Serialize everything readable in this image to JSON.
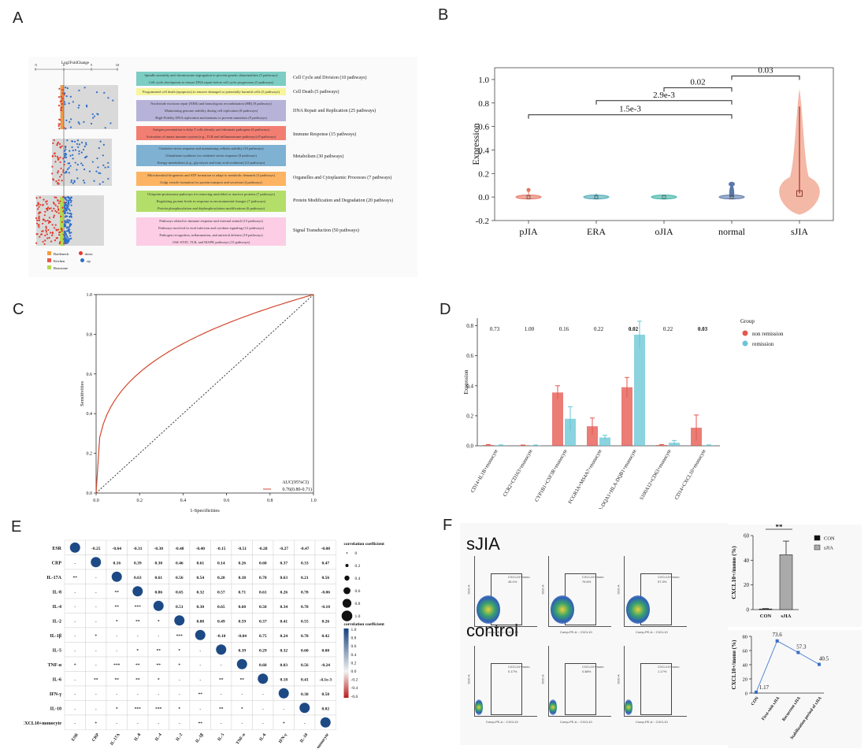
{
  "panel_labels": {
    "a": "A",
    "b": "B",
    "c": "C",
    "d": "D",
    "e": "E",
    "f": "F"
  },
  "panelA": {
    "axis_title": "Log2FoldChange",
    "ticks": [
      "-5",
      "0",
      "5",
      "10"
    ],
    "pathways": [
      {
        "text": "Spindle assembly and chromosome segregation to prevent genetic abnormalities (5 pathways)",
        "color": "#7ccdc4"
      },
      {
        "text": "Cell cycle checkpoints to ensure DNA repair before cell cycle progression (5 pathways)",
        "color": "#7ccdc4"
      },
      {
        "text": "Programmed cell death (apoptosis) to remove damaged or potentially harmful cells (5 pathways)",
        "color": "#f7f59a"
      },
      {
        "text": "Nucleotide excision repair (NER) and homologous recombination (HR) (8 pathways)",
        "color": "#b7b2d8"
      },
      {
        "text": "Maintaining genome stability during cell replication (8 pathways)",
        "color": "#b7b2d8"
      },
      {
        "text": "High-Fidelity DNA replication mechanisms to prevent mutations (9 pathways)",
        "color": "#b7b2d8"
      },
      {
        "text": "Antigen presentation to help T cells identify and eliminate pathogens (6 pathways)",
        "color": "#f27e72"
      },
      {
        "text": "Activation of innate immune system (e.g., TLR and inflammasome pathways) (9 pathways)",
        "color": "#f27e72"
      },
      {
        "text": "Oxidative stress response and maintaining cellular stability (10 pathways)",
        "color": "#7fb1d3"
      },
      {
        "text": "Glutathione synthesis for oxidative stress response (8 pathways)",
        "color": "#7fb1d3"
      },
      {
        "text": "Energy metabolism (e.g., glycolysis and fatty acid oxidation) (12 pathways)",
        "color": "#7fb1d3"
      },
      {
        "text": "Mitochondrial biogenesis and ATP formation to adapt to metabolic demands (3 pathways)",
        "color": "#fdb462"
      },
      {
        "text": "Golgi vesicle formation for protein transport and secretion (4 pathways)",
        "color": "#fdb462"
      },
      {
        "text": "Ubiquitin-proteasome pathways for removing misfolded or inactive proteins (7 pathways)",
        "color": "#b3de69"
      },
      {
        "text": "Regulating protein levels in response to environmental changes (7 pathways)",
        "color": "#b3de69"
      },
      {
        "text": "Protein phosphorylation and dephosphorylation modifications (6 pathways)",
        "color": "#b3de69"
      },
      {
        "text": "Pathways related to immune response and external stimuli (15 pathways)",
        "color": "#fccde5"
      },
      {
        "text": "Pathways involved in viral infection and cytokine signaling (12 pathways)",
        "color": "#fccde5"
      },
      {
        "text": "Pathogen recognition, inflammation, and antiviral defense (10 pathways)",
        "color": "#fccde5"
      },
      {
        "text": "JAK-STAT, TLR, and MAPK pathways (13 pathways)",
        "color": "#fccde5"
      }
    ],
    "categories": [
      "Cell Cycle and Division (10 pathways)",
      "Cell Death (5 pathways)",
      "DNA Repair and Replication (25 pathways)",
      "Immune Response (15 pathways)",
      "Metabolism (30 pathways)",
      "Organelles and Cytoplasmic Processes (7 pathways)",
      "Protein Modification and Degradation (20 pathways)",
      "Signal Transduction (50 pathways)"
    ],
    "legend": [
      "Bottleneck",
      "Kitchen",
      "Reactome",
      "down",
      "up"
    ]
  },
  "chart_data": [
    {
      "id": "B",
      "type": "violin",
      "categories": [
        "pJIA",
        "ERA",
        "oJIA",
        "normal",
        "sJIA"
      ],
      "ylabel": "Expression",
      "ylim": [
        -0.2,
        1.1
      ],
      "yticks": [
        "-0.2",
        "0.0",
        "0.2",
        "0.4",
        "0.6",
        "0.8",
        "1.0"
      ],
      "medians": [
        0.0,
        0.0,
        0.0,
        0.0,
        0.03
      ],
      "colors": [
        "#e5735f",
        "#4aa8b8",
        "#3bb3a6",
        "#5a78a8",
        "#f0a08a"
      ],
      "comparisons": [
        {
          "from": "pJIA",
          "to": "normal",
          "label": "1.5e-3"
        },
        {
          "from": "ERA",
          "to": "normal",
          "label": "2.9e-3"
        },
        {
          "from": "oJIA",
          "to": "normal",
          "label": "0.02"
        },
        {
          "from": "normal",
          "to": "sJIA",
          "label": "0.03"
        }
      ]
    },
    {
      "id": "C",
      "type": "line",
      "xlabel": "1-Specificities",
      "ylabel": "Sensitivities",
      "xlim": [
        0,
        1
      ],
      "ylim": [
        0,
        1
      ],
      "xticks": [
        "0.0",
        "0.2",
        "0.4",
        "0.6",
        "0.8",
        "1.0"
      ],
      "yticks": [
        "0.0",
        "0.2",
        "0.4",
        "0.6",
        "0.8",
        "1.0"
      ],
      "legend_title": "AUC(95%CI)",
      "legend_entry": "0.76(0.80-0.71)",
      "auc": 0.76
    },
    {
      "id": "D",
      "type": "bar",
      "categories": [
        "CD14+IL1B+monocyte",
        "CCR2+CD163+monocyte",
        "CYP1B1+CSF3R+monocyte",
        "FCGR3A+MS4A7+monocyte",
        "HLA-DQA1+HLA-DQB1+monocyte",
        "S100A12+CD63+monocyte",
        "CD14+CXCL10+monocyte"
      ],
      "ylabel": "Expression",
      "ylim": [
        0,
        0.85
      ],
      "yticks": [
        "0.0",
        "0.2",
        "0.4",
        "0.6",
        "0.8"
      ],
      "pvalues": [
        "0.73",
        "1.00",
        "0.16",
        "0.22",
        "0.02",
        "0.22",
        "0.03"
      ],
      "legend_title": "Group",
      "series": [
        {
          "name": "non remission",
          "color": "#e5574f",
          "values": [
            0.005,
            0.003,
            0.355,
            0.13,
            0.39,
            0.005,
            0.12
          ],
          "errors": [
            0.003,
            0.002,
            0.045,
            0.055,
            0.065,
            0.003,
            0.085
          ]
        },
        {
          "name": "remission",
          "color": "#6ac6d6",
          "values": [
            0.004,
            0.003,
            0.18,
            0.055,
            0.74,
            0.02,
            0.004
          ],
          "errors": [
            0.002,
            0.002,
            0.08,
            0.015,
            0.09,
            0.015,
            0.002
          ]
        }
      ]
    },
    {
      "id": "F-bar",
      "type": "bar",
      "categories": [
        "CON",
        "sJIA"
      ],
      "values": [
        0.5,
        44.5
      ],
      "errors": [
        0.3,
        11
      ],
      "ylabel": "CXCL10+/mono (%)",
      "ylim": [
        0,
        60
      ],
      "yticks": [
        "0",
        "20",
        "40",
        "60"
      ],
      "significance": "**",
      "legend": [
        "CON",
        "sJIA"
      ]
    },
    {
      "id": "F-line",
      "type": "line",
      "categories": [
        "CON",
        "First-visit sJIA",
        "Recurrent sJIA",
        "Stabilization period of sJIA"
      ],
      "values": [
        1.17,
        73.6,
        57.3,
        40.5
      ],
      "labels": [
        "1.17",
        "73.6",
        "57.3",
        "40.5"
      ],
      "ylabel": "CXCL10+/mono (%)",
      "ylim": [
        0,
        80
      ],
      "yticks": [
        "0",
        "20",
        "40",
        "60",
        "80"
      ]
    }
  ],
  "panelE": {
    "labels": [
      "ESR",
      "CRP",
      "IL-17A",
      "IL-8",
      "IL-4",
      "IL-2",
      "IL-1β",
      "IL-5",
      "TNF-α",
      "IL-6",
      "IFN-γ",
      "IL-10",
      "CD14+CXCL10+monocyte"
    ],
    "xlabels": [
      "ESR",
      "CRP",
      "IL-17A",
      "IL-8",
      "IL-4",
      "IL-2",
      "IL-1β",
      "IL-5",
      "TNF-α",
      "IL-6",
      "IFN-γ",
      "IL-10",
      "CD14+CXCL10+monocyte"
    ],
    "upper": [
      [
        "-0.25",
        "-0.64",
        "-0.31",
        "-0.30",
        "-0.48",
        "-0.40",
        "-0.15",
        "-0.51",
        "-0.28",
        "-0.27",
        "-0.47",
        "-0.08"
      ],
      [
        "0.16",
        "0.39",
        "0.30",
        "0.46",
        "0.61",
        "0.14",
        "0.26",
        "0.60",
        "0.37",
        "0.33",
        "0.47"
      ],
      [
        "0.63",
        "0.61",
        "0.56",
        "0.54",
        "0.20",
        "0.38",
        "0.78",
        "0.63",
        "0.21",
        "0.56",
        "-0.13"
      ],
      [
        "0.86",
        "0.65",
        "0.32",
        "0.57",
        "0.71",
        "0.61",
        "0.26",
        "0.78",
        "-0.06"
      ],
      [
        "0.51",
        "0.30",
        "0.65",
        "0.60",
        "0.50",
        "0.34",
        "0.78",
        "-0.10"
      ],
      [
        "0.88",
        "0.49",
        "0.59",
        "0.37",
        "0.41",
        "0.55",
        "0.26"
      ],
      [
        "-0.10",
        "-0.04",
        "0.75",
        "0.24",
        "0.78",
        "0.42"
      ],
      [
        "0.39",
        "0.29",
        "0.32",
        "0.60",
        "0.08"
      ],
      [
        "0.68",
        "0.03",
        "0.56",
        "-0.24"
      ],
      [
        "0.18",
        "0.41",
        "-4.1e-3"
      ],
      [
        "0.38",
        "0.50"
      ],
      [
        "0.02"
      ]
    ],
    "lower": [
      [],
      [
        "-"
      ],
      [
        "**",
        "-"
      ],
      [
        "-",
        "-",
        "**"
      ],
      [
        "-",
        "-",
        "**",
        "***"
      ],
      [
        "-",
        "-",
        "*",
        "**",
        "*"
      ],
      [
        "-",
        "*",
        "-",
        "-",
        "-",
        "***"
      ],
      [
        "-",
        "-",
        "-",
        "*",
        "**",
        "*",
        "-"
      ],
      [
        "*",
        "-",
        "***",
        "**",
        "**",
        "*",
        "-",
        "-"
      ],
      [
        "-",
        "**",
        "**",
        "**",
        "*",
        "-",
        "-",
        "**",
        "**"
      ],
      [
        "-",
        "-",
        "-",
        "-",
        "-",
        "-",
        "**",
        "-",
        "-",
        "-"
      ],
      [
        "-",
        "-",
        "*",
        "***",
        "***",
        "*",
        "-",
        "**",
        "*",
        "-",
        "-"
      ],
      [
        "-",
        "*",
        "-",
        "-",
        "-",
        "-",
        "**",
        "-",
        "-",
        "-",
        "*",
        "-"
      ]
    ],
    "size_legend_title": "correlation coefficient",
    "size_legend_ticks": [
      "0",
      "0.2",
      "0.4",
      "0.6",
      "0.8",
      "1.0"
    ],
    "color_legend_title": "correlation coefficient",
    "color_legend_ticks": [
      "1.0",
      "0.8",
      "0.6",
      "0.4",
      "0.2",
      "0.0",
      "-0.2",
      "-0.4",
      "-0.6"
    ]
  },
  "panelF": {
    "sjia_label": "sJIA",
    "control_label": "control",
    "xaxis": "Comp-PE-A :: CXCL10",
    "yaxis": "SSC-A",
    "gate_name": "CXCL10+mono",
    "sjia_pcts": [
      "45.1%",
      "75.6%",
      "57.3%"
    ],
    "control_pcts": [
      "0.17%",
      "0.88%",
      "1.17%"
    ]
  }
}
